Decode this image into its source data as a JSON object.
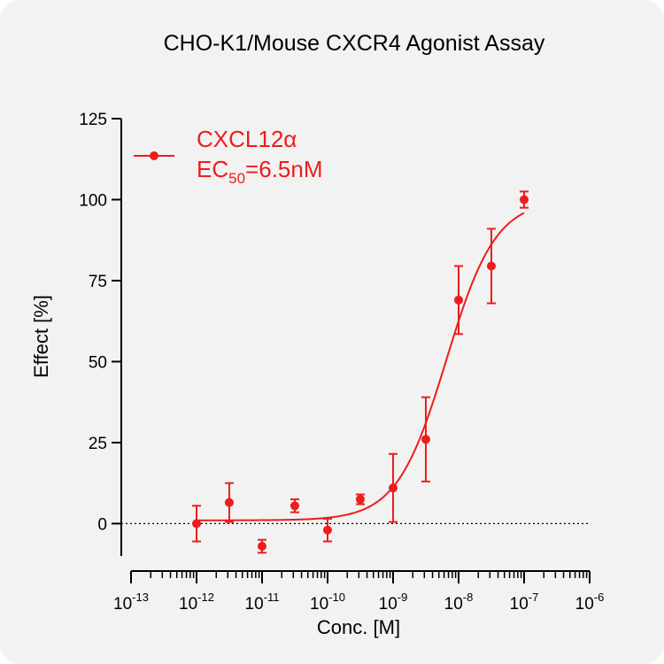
{
  "chart_data": {
    "type": "scatter",
    "title": "CHO-K1/Mouse CXCR4  Agonist Assay",
    "xlabel": "Conc. [M]",
    "ylabel": "Effect  [%]",
    "x_scale": "log",
    "x_range_exponent": [
      -13,
      -6
    ],
    "x_tick_exponents": [
      -13,
      -12,
      -11,
      -10,
      -9,
      -8,
      -7,
      -6
    ],
    "x_tick_base": "10",
    "ylim": [
      -10,
      125
    ],
    "y_ticks": [
      0,
      25,
      50,
      75,
      100,
      125
    ],
    "y_tick_labels": [
      "0",
      "25",
      "50",
      "75",
      "100",
      "125"
    ],
    "zero_line": "dotted",
    "grid": false,
    "legend_position": "top-left",
    "color": "#ee1c1c",
    "series": [
      {
        "name": "CXCL12α",
        "annotation": {
          "prefix": "EC",
          "subscript": "50",
          "suffix": "=6.5nM"
        },
        "x": [
          1e-12,
          3.16e-12,
          1e-11,
          3.16e-11,
          1e-10,
          3.16e-10,
          1e-09,
          3.16e-09,
          1e-08,
          3.16e-08,
          1e-07
        ],
        "y": [
          0,
          6.5,
          -7,
          5.5,
          -2,
          7.5,
          11,
          26,
          69,
          79.5,
          100
        ],
        "error": [
          5.5,
          6,
          2,
          2,
          3.5,
          1.5,
          10.5,
          13,
          10.5,
          11.5,
          2.5
        ],
        "fit": {
          "model": "4PL",
          "bottom": 1,
          "top": 100,
          "ec50": 6.5e-09,
          "hill": 1.15
        }
      }
    ]
  }
}
